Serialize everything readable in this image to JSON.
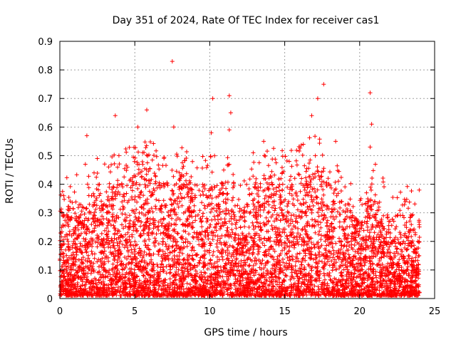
{
  "chart_data": {
    "type": "scatter",
    "title": "Day 351 of 2024, Rate Of TEC Index for receiver cas1",
    "xlabel": "GPS time / hours",
    "ylabel": "ROTI / TECUs",
    "xlim": [
      0,
      25
    ],
    "ylim": [
      0,
      0.9
    ],
    "x_ticks": [
      "0",
      "5",
      "10",
      "15",
      "20",
      "25"
    ],
    "y_ticks": [
      "0",
      "0.1",
      "0.2",
      "0.3",
      "0.4",
      "0.5",
      "0.6",
      "0.7",
      "0.8",
      "0.9"
    ],
    "grid": true,
    "marker": "+",
    "point_color": "#ff0000",
    "x_data_range": [
      0,
      24
    ],
    "notable_points": [
      {
        "x": 7.5,
        "y": 0.83
      },
      {
        "x": 17.6,
        "y": 0.75
      },
      {
        "x": 20.7,
        "y": 0.72
      },
      {
        "x": 11.3,
        "y": 0.71
      },
      {
        "x": 17.2,
        "y": 0.7
      },
      {
        "x": 10.2,
        "y": 0.7
      },
      {
        "x": 5.8,
        "y": 0.66
      },
      {
        "x": 3.7,
        "y": 0.64
      },
      {
        "x": 11.4,
        "y": 0.65
      },
      {
        "x": 16.8,
        "y": 0.64
      },
      {
        "x": 20.8,
        "y": 0.61
      },
      {
        "x": 5.2,
        "y": 0.6
      },
      {
        "x": 1.8,
        "y": 0.57
      },
      {
        "x": 7.6,
        "y": 0.6
      },
      {
        "x": 10.1,
        "y": 0.58
      },
      {
        "x": 11.3,
        "y": 0.59
      },
      {
        "x": 13.6,
        "y": 0.55
      },
      {
        "x": 18.4,
        "y": 0.55
      },
      {
        "x": 20.7,
        "y": 0.53
      },
      {
        "x": 2.5,
        "y": 0.49
      },
      {
        "x": 1.7,
        "y": 0.47
      },
      {
        "x": 15.3,
        "y": 0.48
      },
      {
        "x": 12.9,
        "y": 0.51
      }
    ],
    "envelope": {
      "hours": [
        0,
        1,
        2,
        3,
        4,
        5,
        6,
        7,
        8,
        9,
        10,
        11,
        12,
        13,
        14,
        15,
        16,
        17,
        18,
        19,
        20,
        21,
        22,
        23,
        24
      ],
      "upper": [
        0.32,
        0.34,
        0.33,
        0.38,
        0.42,
        0.44,
        0.46,
        0.4,
        0.44,
        0.4,
        0.4,
        0.42,
        0.3,
        0.4,
        0.44,
        0.42,
        0.45,
        0.48,
        0.42,
        0.36,
        0.26,
        0.38,
        0.28,
        0.3,
        0.28
      ]
    }
  }
}
